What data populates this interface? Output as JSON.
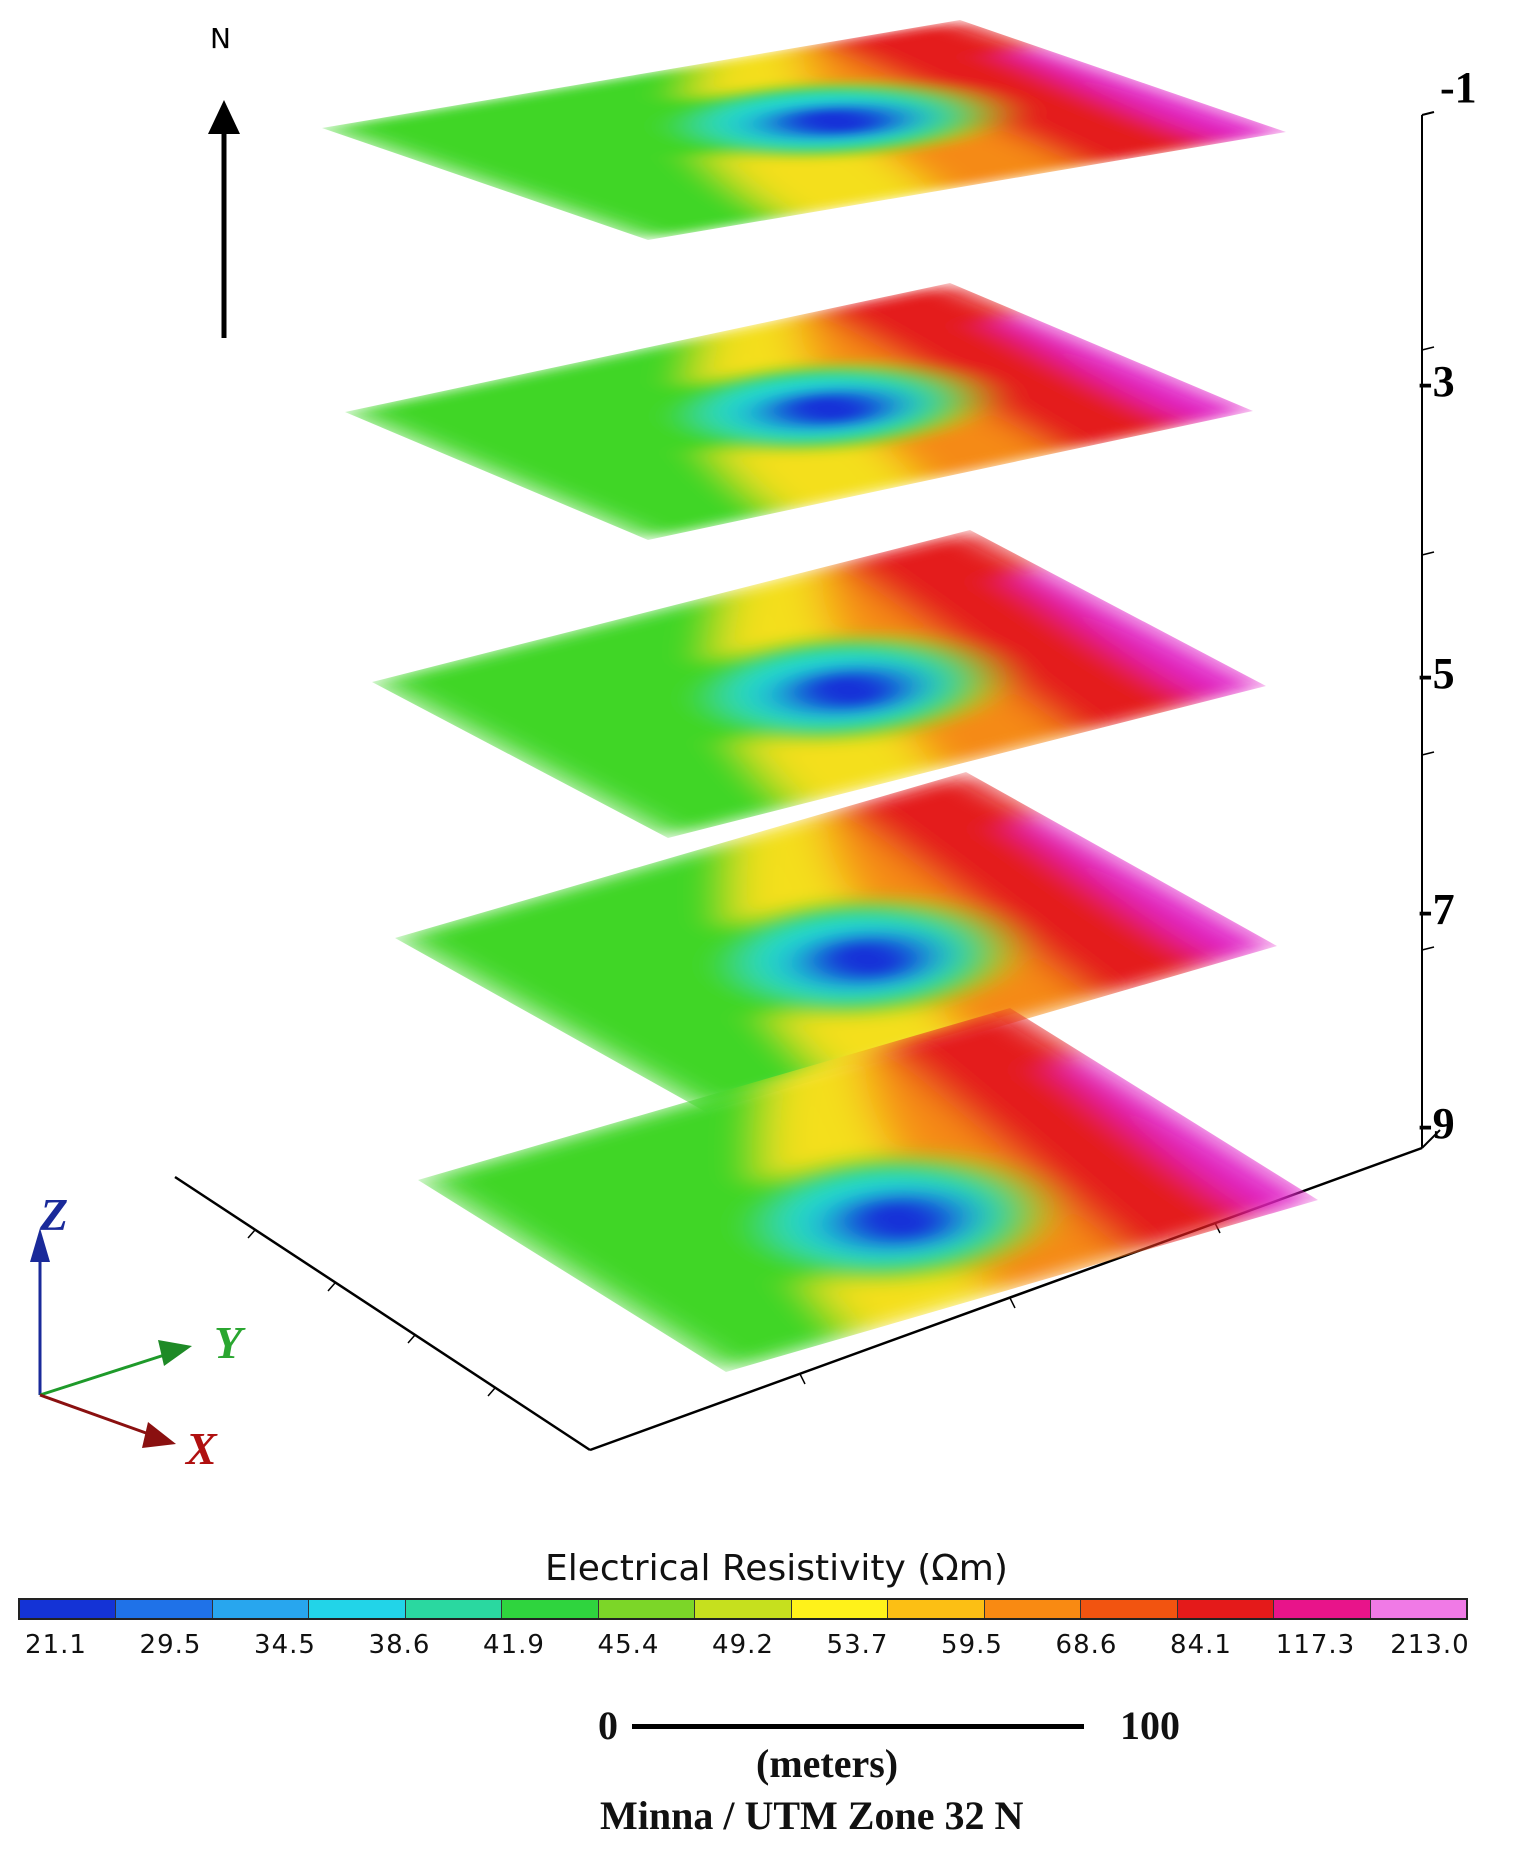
{
  "north": {
    "label": "N"
  },
  "depth_labels": [
    "-1",
    "-3",
    "-5",
    "-7",
    "-9"
  ],
  "colors": {
    "magenta": "#e020c8",
    "red": "#e41e1e",
    "orange": "#f58a14",
    "yellow": "#f4df1a",
    "green": "#3fd628",
    "cyan": "#20d8d0",
    "blue": "#1430d8"
  },
  "legend": {
    "title": "Electrical Resistivity (Ωm)",
    "segment_colors": [
      "#1433d6",
      "#1f72e8",
      "#28a6ee",
      "#22d4e8",
      "#2ad8a0",
      "#2fd43e",
      "#7cd628",
      "#c6e01e",
      "#fff21a",
      "#fcbf14",
      "#f98a12",
      "#f25410",
      "#e41a1a",
      "#e8148a",
      "#f07ae6"
    ],
    "ticks": [
      "21.1",
      "29.5",
      "34.5",
      "38.6",
      "41.9",
      "45.4",
      "49.2",
      "53.7",
      "59.5",
      "68.6",
      "84.1",
      "117.3",
      "213.0"
    ]
  },
  "scale": {
    "start": "0",
    "end": "100",
    "unit": "(meters)",
    "projection": "Minna / UTM Zone 32 N"
  },
  "axes": {
    "z": "Z",
    "y": "Y",
    "x": "X"
  }
}
